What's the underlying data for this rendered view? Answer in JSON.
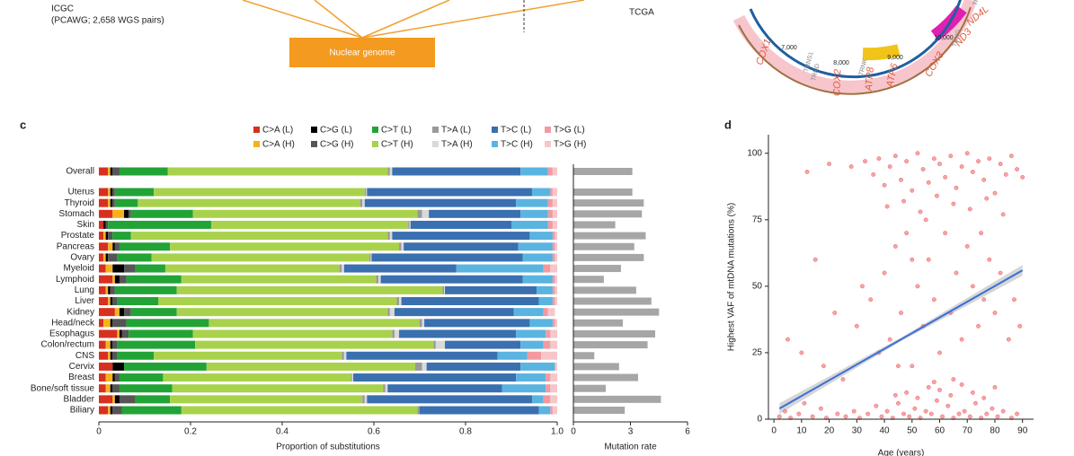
{
  "panels": [
    "c",
    "d"
  ],
  "diagram": {
    "left_title": "ICGC",
    "left_subtitle": "(PCAWG; 2,658 WGS pairs)",
    "box": "Nuclear genome",
    "right_title": "TCGA",
    "genes": [
      "COX1",
      "COX2",
      "ATP8",
      "ATP6",
      "COX3",
      "ND3",
      "ND4L"
    ],
    "positions": [
      "7,000",
      "8,000",
      "9,000",
      "10,000"
    ],
    "trna": [
      "TRNS1",
      "TRND",
      "TRNK",
      "TRNG",
      "TRNR"
    ]
  },
  "chart_data": [
    {
      "type": "stacked_bar",
      "orientation": "horizontal",
      "x_label": "Proportion of substitutions",
      "categories": [
        "Overall",
        "Uterus",
        "Thyroid",
        "Stomach",
        "Skin",
        "Prostate",
        "Pancreas",
        "Ovary",
        "Myeloid",
        "Lymphoid",
        "Lung",
        "Liver",
        "Kidney",
        "Head/neck",
        "Esophagus",
        "Colon/rectum",
        "CNS",
        "Cervix",
        "Breast",
        "Bone/soft tissue",
        "Bladder",
        "Biliary"
      ],
      "xlim": [
        0,
        1
      ],
      "xticks": [
        0,
        0.2,
        0.4,
        0.6,
        0.8,
        {
          "value": 1,
          "label": "1.0"
        }
      ],
      "series": [
        {
          "name": "C>A (L)",
          "color": "#d7301f",
          "values": [
            0.02,
            0.02,
            0.02,
            0.03,
            0.01,
            0.01,
            0.02,
            0.01,
            0.015,
            0.03,
            0.015,
            0.02,
            0.035,
            0.01,
            0.04,
            0.015,
            0.02,
            0.03,
            0.015,
            0.015,
            0.03,
            0.02
          ]
        },
        {
          "name": "C>A (H)",
          "color": "#f5b21b",
          "values": [
            0.005,
            0.005,
            0.005,
            0.025,
            0,
            0.005,
            0.01,
            0.005,
            0.015,
            0.005,
            0.005,
            0.005,
            0.01,
            0.015,
            0.005,
            0.01,
            0.005,
            0,
            0.015,
            0.01,
            0.005,
            0.005
          ]
        },
        {
          "name": "C>G (L)",
          "color": "#000000",
          "values": [
            0.005,
            0.005,
            0.005,
            0.01,
            0.005,
            0.005,
            0.005,
            0.005,
            0.025,
            0.01,
            0.005,
            0.005,
            0.01,
            0.005,
            0.005,
            0.005,
            0.005,
            0.025,
            0.005,
            0.005,
            0.01,
            0.005
          ]
        },
        {
          "name": "C>G (H)",
          "color": "#555555",
          "values": [
            0.015,
            0.005,
            0.005,
            0.005,
            0.005,
            0.01,
            0.01,
            0.02,
            0.025,
            0.015,
            0.01,
            0.01,
            0.015,
            0.03,
            0.015,
            0.01,
            0.01,
            0,
            0.01,
            0.015,
            0.035,
            0.02
          ]
        },
        {
          "name": "C>T (L)",
          "color": "#22a336",
          "values": [
            0.105,
            0.085,
            0.05,
            0.135,
            0.225,
            0.04,
            0.11,
            0.075,
            0.065,
            0.12,
            0.135,
            0.09,
            0.1,
            0.18,
            0.14,
            0.17,
            0.08,
            0.18,
            0.095,
            0.115,
            0.075,
            0.13
          ]
        },
        {
          "name": "C>T (H)",
          "color": "#a8d24b",
          "values": [
            0.48,
            0.46,
            0.485,
            0.49,
            0.43,
            0.56,
            0.5,
            0.475,
            0.38,
            0.425,
            0.58,
            0.52,
            0.46,
            0.46,
            0.435,
            0.52,
            0.41,
            0.455,
            0.41,
            0.46,
            0.42,
            0.515
          ]
        },
        {
          "name": "T>A (L)",
          "color": "#999999",
          "values": [
            0.005,
            0.003,
            0.005,
            0.01,
            0.003,
            0.005,
            0.005,
            0.003,
            0.005,
            0.005,
            0.003,
            0.005,
            0.005,
            0.005,
            0.005,
            0.005,
            0.005,
            0.015,
            0.002,
            0.005,
            0.005,
            0.005
          ]
        },
        {
          "name": "T>A (H)",
          "color": "#d9d9d9",
          "values": [
            0.005,
            0.002,
            0.005,
            0.015,
            0.002,
            0.005,
            0.005,
            0.002,
            0.005,
            0.005,
            0.002,
            0.005,
            0.01,
            0.005,
            0.01,
            0.02,
            0.005,
            0.01,
            0.003,
            0.005,
            0.005,
            0
          ]
        },
        {
          "name": "T>C (L)",
          "color": "#3a6fb0",
          "values": [
            0.28,
            0.36,
            0.33,
            0.2,
            0.22,
            0.3,
            0.25,
            0.33,
            0.245,
            0.31,
            0.2,
            0.3,
            0.26,
            0.23,
            0.255,
            0.165,
            0.33,
            0.205,
            0.355,
            0.25,
            0.36,
            0.26
          ]
        },
        {
          "name": "T>C (H)",
          "color": "#5ab4e0",
          "values": [
            0.06,
            0.04,
            0.07,
            0.06,
            0.08,
            0.05,
            0.075,
            0.065,
            0.19,
            0.065,
            0.035,
            0.03,
            0.065,
            0.05,
            0.065,
            0.05,
            0.065,
            0.075,
            0.065,
            0.095,
            0.025,
            0.025
          ]
        },
        {
          "name": "T>G (L)",
          "color": "#f29aa0",
          "values": [
            0.01,
            0.005,
            0.01,
            0.01,
            0.01,
            0.005,
            0.005,
            0.005,
            0.015,
            0.005,
            0.005,
            0.005,
            0.01,
            0.005,
            0.01,
            0.015,
            0.03,
            0,
            0.01,
            0.01,
            0.015,
            0.005
          ]
        },
        {
          "name": "T>G (H)",
          "color": "#f7c6ca",
          "values": [
            0.01,
            0.01,
            0.01,
            0.01,
            0.01,
            0.005,
            0.005,
            0.005,
            0.015,
            0.005,
            0.005,
            0.005,
            0.015,
            0.005,
            0.015,
            0.015,
            0.035,
            0.005,
            0.015,
            0.015,
            0.015,
            0.01
          ]
        }
      ]
    },
    {
      "type": "bar",
      "orientation": "horizontal",
      "x_label": "Mutation rate",
      "color": "#a6a6a6",
      "xlim": [
        0,
        6
      ],
      "xticks": [
        0,
        3,
        6
      ],
      "values": [
        3.1,
        3.1,
        3.7,
        3.6,
        2.2,
        3.8,
        3.2,
        3.7,
        2.5,
        1.6,
        3.3,
        4.1,
        4.5,
        2.6,
        4.3,
        3.9,
        1.1,
        2.4,
        3.4,
        1.7,
        4.6,
        2.7
      ]
    },
    {
      "type": "scatter",
      "x_label": "Age (years)",
      "y_label": "Highest VAF of mtDNA mutations (%)",
      "color": "#e8363d",
      "trend_color": "#3b6fd6",
      "xlim": [
        -2,
        94
      ],
      "ylim": [
        0,
        107
      ],
      "xticks": [
        0,
        10,
        20,
        30,
        40,
        50,
        60,
        70,
        80,
        90
      ],
      "yticks": [
        0,
        25,
        50,
        75,
        100
      ],
      "trend": {
        "x": [
          2,
          90
        ],
        "y": [
          4,
          56
        ]
      },
      "x": [
        2,
        4,
        6,
        9,
        11,
        14,
        17,
        19,
        23,
        26,
        29,
        31,
        34,
        37,
        39,
        41,
        43,
        45,
        47,
        49,
        51,
        53,
        55,
        57,
        59,
        61,
        63,
        65,
        67,
        69,
        71,
        73,
        75,
        77,
        79,
        81,
        83,
        86,
        88,
        44,
        48,
        52,
        56,
        60,
        64,
        68,
        72,
        76,
        80,
        58,
        36,
        38,
        40,
        42,
        44,
        46,
        48,
        50,
        52,
        54,
        56,
        58,
        60,
        62,
        64,
        66,
        68,
        70,
        72,
        74,
        76,
        78,
        80,
        82,
        84,
        86,
        88,
        90,
        41,
        47,
        53,
        59,
        65,
        71,
        77,
        83,
        28,
        33,
        12,
        20,
        5,
        10,
        15,
        18,
        22,
        25,
        30,
        32,
        35,
        38,
        40,
        42,
        44,
        46,
        48,
        50,
        52,
        54,
        56,
        58,
        60,
        62,
        64,
        66,
        68,
        70,
        72,
        74,
        76,
        78,
        80,
        82,
        85,
        87,
        89,
        45,
        55,
        65,
        75,
        50
      ],
      "y": [
        1,
        3,
        0.5,
        2,
        6,
        1,
        4,
        0.5,
        2,
        1,
        3,
        0.5,
        2,
        5,
        1,
        3,
        0.5,
        6,
        2,
        1,
        4,
        0.5,
        3,
        2,
        7,
        1,
        5,
        0.5,
        2,
        3,
        1,
        6,
        0.5,
        2,
        4,
        1,
        3,
        0.5,
        2,
        9,
        10,
        8,
        12,
        11,
        9,
        13,
        10,
        8,
        12,
        14,
        92,
        98,
        88,
        95,
        99,
        90,
        97,
        86,
        100,
        94,
        89,
        98,
        96,
        91,
        99,
        87,
        95,
        100,
        93,
        97,
        90,
        98,
        85,
        96,
        92,
        99,
        94,
        91,
        80,
        82,
        78,
        84,
        81,
        79,
        83,
        77,
        95,
        97,
        93,
        96,
        30,
        25,
        60,
        20,
        40,
        15,
        35,
        50,
        45,
        25,
        55,
        30,
        65,
        40,
        70,
        20,
        50,
        35,
        60,
        45,
        25,
        70,
        40,
        55,
        30,
        65,
        50,
        35,
        45,
        60,
        40,
        55,
        30,
        45,
        35,
        20,
        75,
        15,
        70,
        60
      ]
    }
  ]
}
